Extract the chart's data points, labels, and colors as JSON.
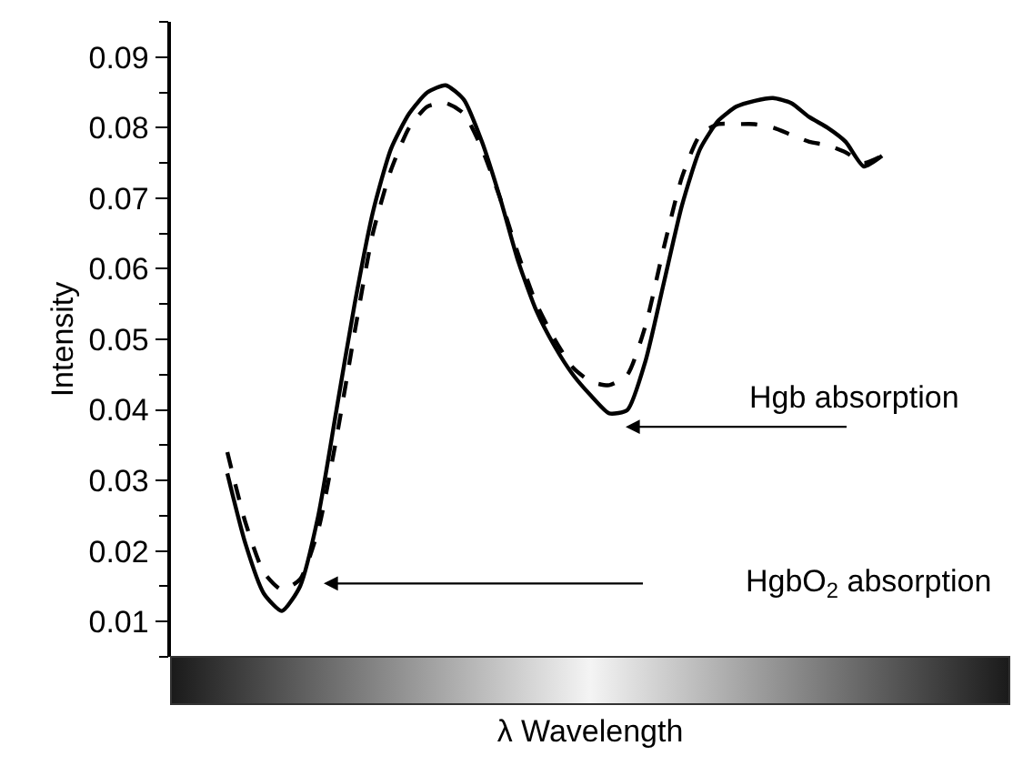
{
  "chart_data": {
    "type": "line",
    "ylabel": "Intensity",
    "xlabel": "λ Wavelength",
    "categories": [
      null,
      null,
      null,
      null,
      null,
      null,
      null,
      null,
      null,
      null,
      null,
      null,
      null,
      null,
      null,
      null,
      null,
      null,
      null,
      null,
      null,
      null,
      null,
      null,
      null,
      null,
      null,
      null,
      null,
      null,
      null,
      null,
      null,
      null,
      null,
      null,
      null
    ],
    "series": [
      {
        "color": "#000000",
        "line_style": "solid",
        "values": [
          0.031,
          0.021,
          0.014,
          0.0115,
          0.015,
          0.025,
          0.04,
          0.055,
          0.068,
          0.077,
          0.082,
          0.085,
          0.086,
          0.084,
          0.078,
          0.07,
          0.061,
          0.054,
          0.049,
          0.045,
          0.042,
          0.0395,
          0.04,
          0.047,
          0.058,
          0.069,
          0.077,
          0.081,
          0.083,
          0.0838,
          0.0842,
          0.0835,
          0.0815,
          0.08,
          0.078,
          0.0745,
          0.076
        ]
      },
      {
        "color": "#000000",
        "line_style": "dashed",
        "values": [
          0.034,
          0.024,
          0.017,
          0.0145,
          0.016,
          0.023,
          0.036,
          0.051,
          0.065,
          0.074,
          0.08,
          0.083,
          0.0835,
          0.082,
          0.077,
          0.07,
          0.062,
          0.055,
          0.05,
          0.046,
          0.044,
          0.0435,
          0.045,
          0.052,
          0.063,
          0.073,
          0.079,
          0.0805,
          0.0805,
          0.0805,
          0.08,
          0.079,
          0.078,
          0.0775,
          0.0765,
          0.075,
          0.076
        ]
      }
    ],
    "ylim": [
      0.005,
      0.095
    ],
    "yticks": [
      0.01,
      0.02,
      0.03,
      0.04,
      0.05,
      0.06,
      0.07,
      0.08,
      0.09
    ],
    "tick_labels": "y",
    "marker": "none",
    "annotations": [
      "Hgb absorption",
      "HgbO$_{2}$ absorption"
    ]
  }
}
